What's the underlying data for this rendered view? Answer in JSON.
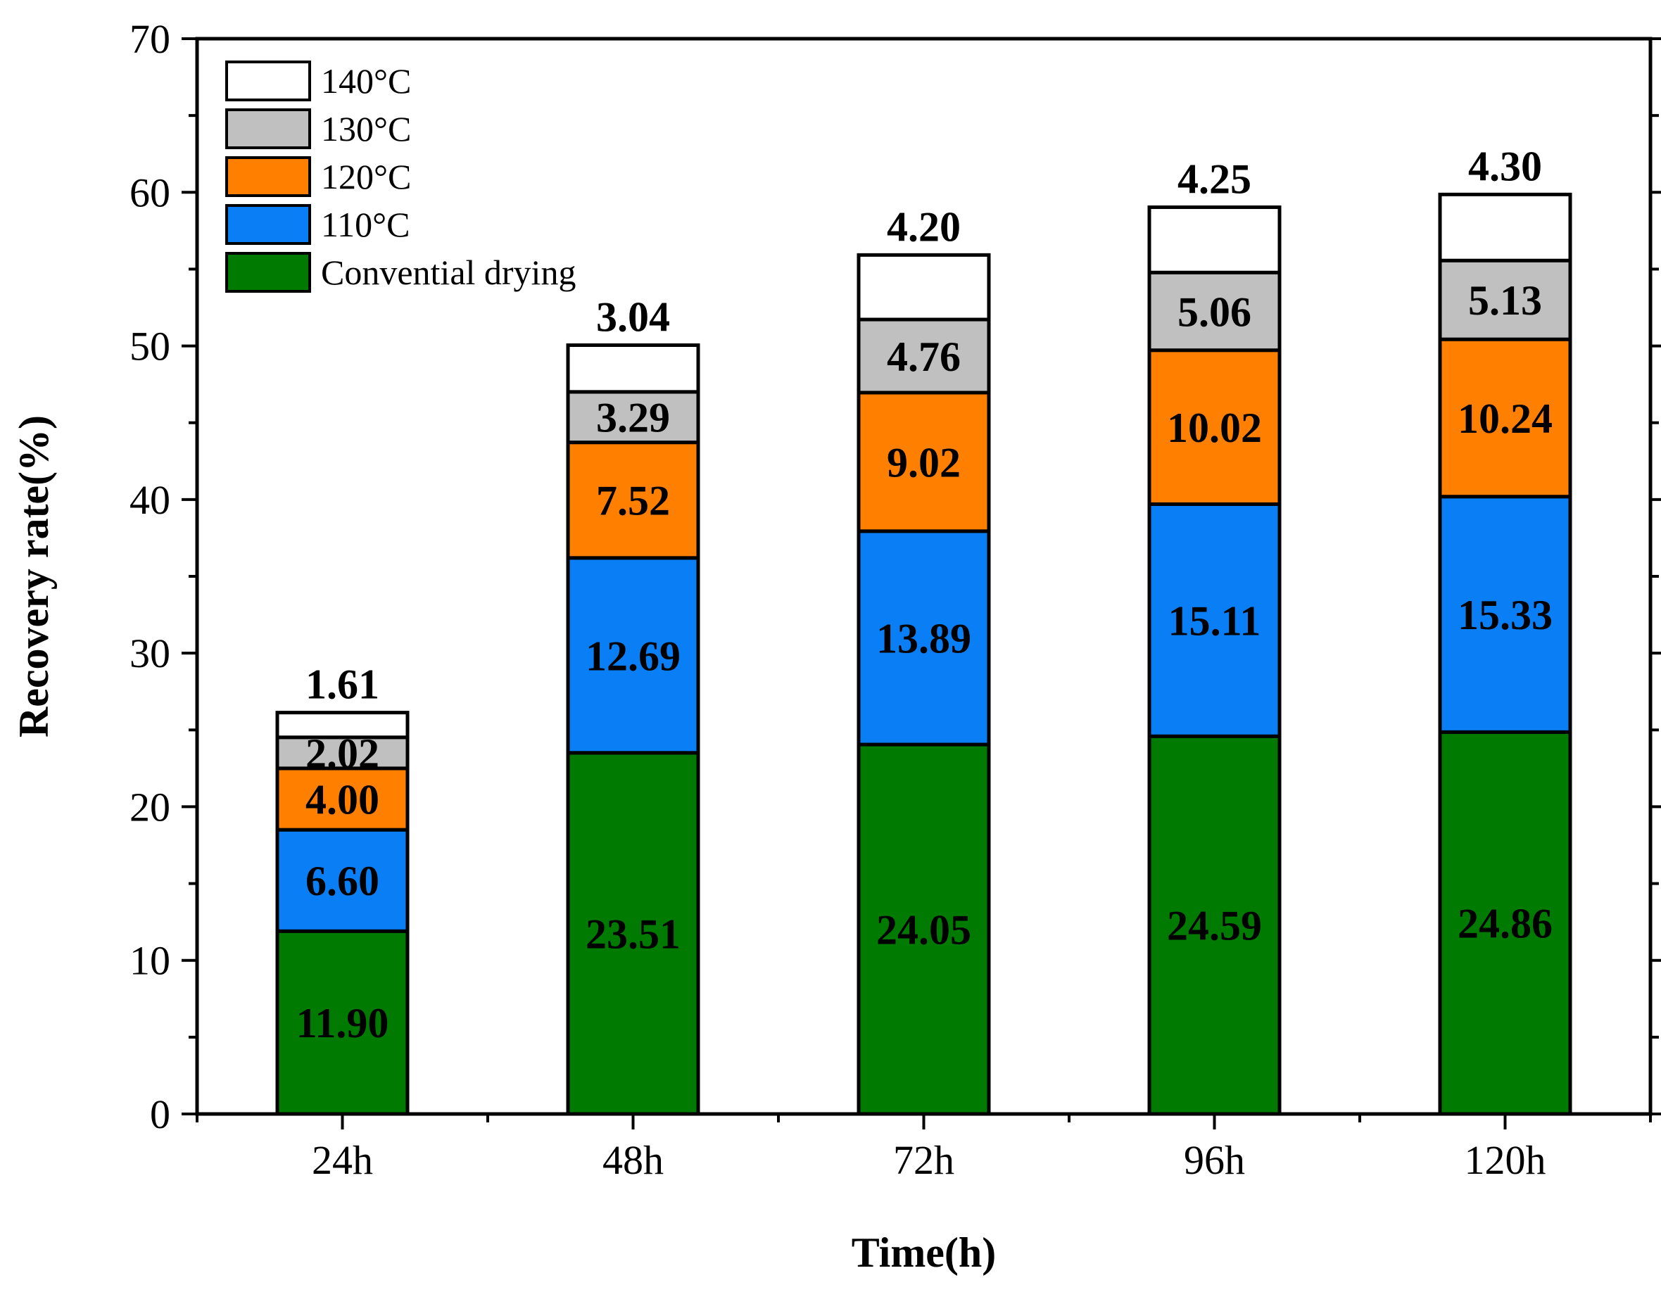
{
  "chart_data": {
    "type": "bar",
    "stacked": true,
    "title": "",
    "xlabel": "Time(h)",
    "ylabel": "Recovery rate(%)",
    "ylim": [
      0,
      70
    ],
    "yticks": [
      0,
      10,
      20,
      30,
      40,
      50,
      60,
      70
    ],
    "categories": [
      "24h",
      "48h",
      "72h",
      "96h",
      "120h"
    ],
    "legend_position": "top-left",
    "series": [
      {
        "name": "Convential drying",
        "color": "#007a00",
        "values": [
          11.9,
          23.51,
          24.05,
          24.59,
          24.86
        ],
        "labels": [
          "11.90",
          "23.51",
          "24.05",
          "24.59",
          "24.86"
        ]
      },
      {
        "name": "110°C",
        "color": "#0a7ff5",
        "values": [
          6.6,
          12.69,
          13.89,
          15.11,
          15.33
        ],
        "labels": [
          "6.60",
          "12.69",
          "13.89",
          "15.11",
          "15.33"
        ]
      },
      {
        "name": "120°C",
        "color": "#ff8000",
        "values": [
          4.0,
          7.52,
          9.02,
          10.02,
          10.24
        ],
        "labels": [
          "4.00",
          "7.52",
          "9.02",
          "10.02",
          "10.24"
        ]
      },
      {
        "name": "130°C",
        "color": "#c0c0c0",
        "values": [
          2.02,
          3.29,
          4.76,
          5.06,
          5.13
        ],
        "labels": [
          "2.02",
          "3.29",
          "4.76",
          "5.06",
          "5.13"
        ]
      },
      {
        "name": "140°C",
        "color": "#ffffff",
        "values": [
          1.61,
          3.04,
          4.2,
          4.25,
          4.3
        ],
        "labels": [
          "1.61",
          "3.04",
          "4.20",
          "4.25",
          "4.30"
        ]
      }
    ]
  }
}
